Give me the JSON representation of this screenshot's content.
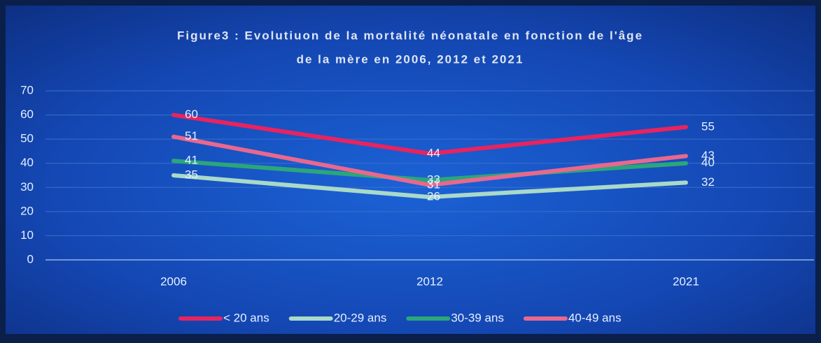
{
  "chart_data": {
    "type": "line",
    "title": [
      "Figure3 : Evolutiuon de la mortalité néonatale en fonction de l'âge",
      "de la mère en 2006, 2012 et 2021"
    ],
    "categories": [
      "2006",
      "2012",
      "2021"
    ],
    "series": [
      {
        "name": "< 20 ans",
        "color": "#e8235f",
        "values": [
          60,
          44,
          55
        ]
      },
      {
        "name": "20-29 ans",
        "color": "#a9d9c9",
        "values": [
          35,
          26,
          32
        ]
      },
      {
        "name": "30-39 ans",
        "color": "#2ba67a",
        "values": [
          41,
          33,
          40
        ]
      },
      {
        "name": "40-49 ans",
        "color": "#e8688e",
        "values": [
          51,
          31,
          43
        ]
      }
    ],
    "ylim": [
      0,
      70
    ],
    "yticks": [
      0,
      10,
      20,
      30,
      40,
      50,
      60,
      70
    ],
    "grid": true,
    "legend": "bottom"
  }
}
